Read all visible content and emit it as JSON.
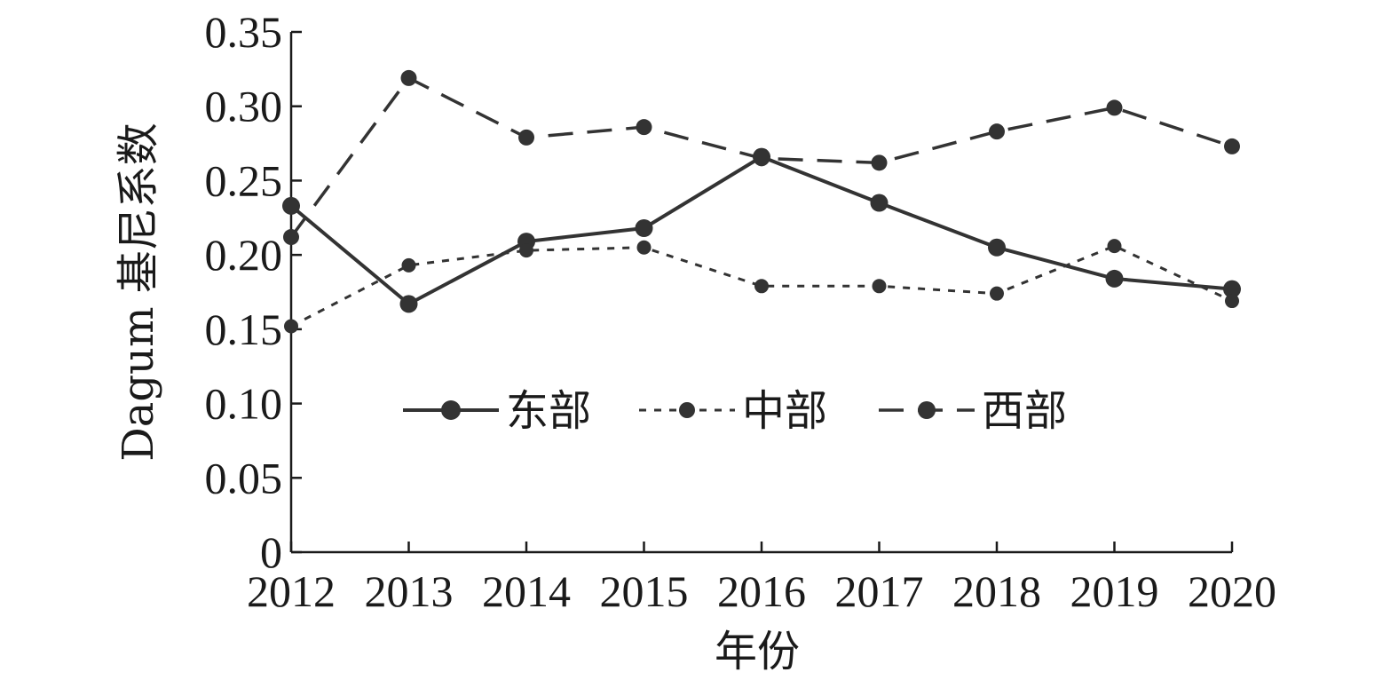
{
  "chart_data": {
    "type": "line",
    "title": "",
    "xlabel": "年份",
    "ylabel": "Dagum 基尼系数",
    "x": [
      "2012",
      "2013",
      "2014",
      "2015",
      "2016",
      "2017",
      "2018",
      "2019",
      "2020"
    ],
    "ylim": [
      0,
      0.35
    ],
    "yticks": [
      "0",
      "0.05",
      "0.10",
      "0.15",
      "0.20",
      "0.25",
      "0.30",
      "0.35"
    ],
    "grid": false,
    "legend_position": "center",
    "series": [
      {
        "name": "东部",
        "style": "solid",
        "color": "#333333",
        "values": [
          0.233,
          0.167,
          0.209,
          0.218,
          0.266,
          0.235,
          0.205,
          0.184,
          0.177
        ]
      },
      {
        "name": "中部",
        "style": "dotted",
        "color": "#333333",
        "values": [
          0.152,
          0.193,
          0.203,
          0.205,
          0.179,
          0.179,
          0.174,
          0.206,
          0.169
        ]
      },
      {
        "name": "西部",
        "style": "dashed",
        "color": "#333333",
        "values": [
          0.212,
          0.319,
          0.279,
          0.286,
          0.265,
          0.262,
          0.283,
          0.299,
          0.273
        ]
      }
    ]
  }
}
